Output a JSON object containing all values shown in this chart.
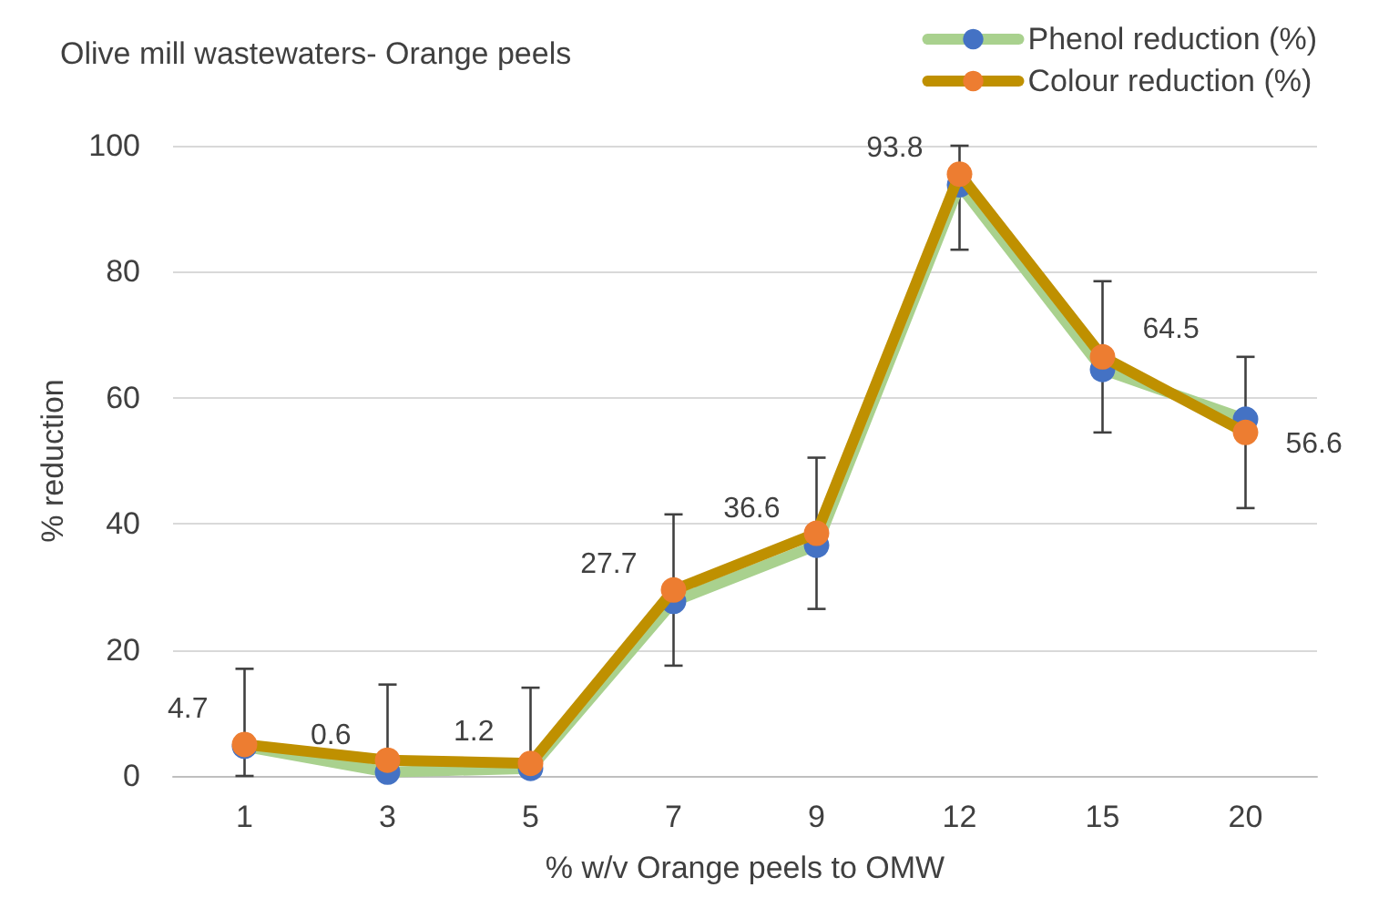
{
  "chart_data": {
    "type": "line",
    "title": "Olive mill wastewaters- Orange peels",
    "xlabel": "% w/v Orange peels to OMW",
    "ylabel": "% reduction",
    "categories": [
      "1",
      "3",
      "5",
      "7",
      "9",
      "12",
      "15",
      "20"
    ],
    "series": [
      {
        "name": "Phenol reduction (%)",
        "color": "#a9d18e",
        "colors": [
          "#4472c4",
          "#4472c4",
          "#4472c4",
          "#4472c4",
          "#4472c4",
          "#4472c4",
          "#4472c4",
          "#4472c4"
        ],
        "values": [
          4.7,
          0.6,
          1.2,
          27.7,
          36.6,
          93.8,
          64.5,
          56.6
        ],
        "value_labels": [
          "4.7",
          "0.6",
          "1.2",
          "27.7",
          "36.6",
          "93.8",
          "64.5",
          "56.6"
        ]
      },
      {
        "name": "Colour reduction (%)",
        "color": "#bf9000",
        "colors": [
          "#ed7d31",
          "#ed7d31",
          "#ed7d31",
          "#ed7d31",
          "#ed7d31",
          "#ed7d31",
          "#ed7d31",
          "#ed7d31"
        ],
        "values": [
          5,
          2.5,
          2,
          29.5,
          38.5,
          95.5,
          66.5,
          54.5
        ],
        "errors": [
          [
            0,
            17
          ],
          [
            0,
            14.5
          ],
          [
            0,
            14
          ],
          [
            17.5,
            41.5
          ],
          [
            26.5,
            50.5
          ],
          [
            83.5,
            100
          ],
          [
            54.5,
            78.5
          ],
          [
            42.5,
            66.5
          ]
        ]
      }
    ],
    "ylim": [
      0,
      100
    ],
    "yticks": [
      0,
      20,
      40,
      60,
      80,
      100
    ],
    "grid": "y",
    "legend": "top right",
    "marker": "circle",
    "line_style": "solid"
  }
}
